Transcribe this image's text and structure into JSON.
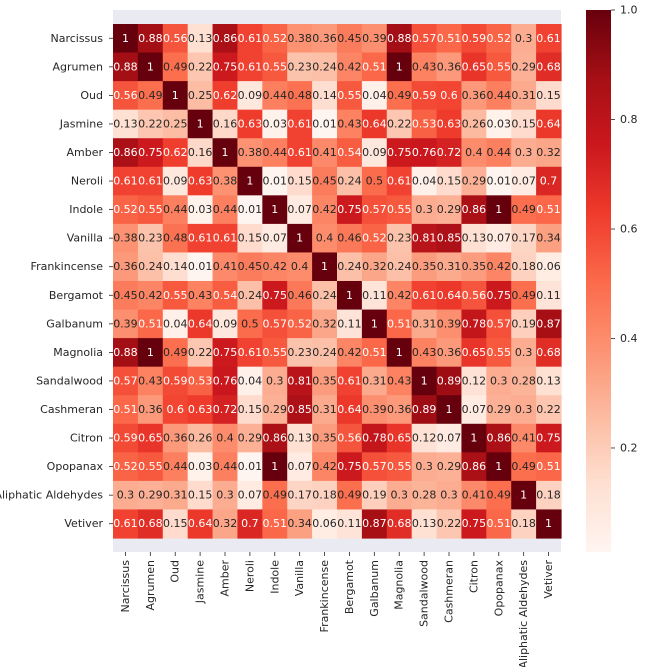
{
  "chart_data": {
    "type": "heatmap",
    "title": "",
    "xlabel": "",
    "ylabel": "",
    "labels": [
      "Narcissus",
      "Agrumen",
      "Oud",
      "Jasmine",
      "Amber",
      "Neroli",
      "Indole",
      "Vanilla",
      "Frankincense",
      "Bergamot",
      "Galbanum",
      "Magnolia",
      "Sandalwood",
      "Cashmeran",
      "Citron",
      "Opopanax",
      "Aliphatic Aldehydes",
      "Vetiver"
    ],
    "matrix": [
      [
        1,
        0.88,
        0.56,
        0.13,
        0.86,
        0.61,
        0.52,
        0.38,
        0.36,
        0.45,
        0.39,
        0.88,
        0.57,
        0.51,
        0.59,
        0.52,
        0.3,
        0.61
      ],
      [
        0.88,
        1,
        0.49,
        0.22,
        0.75,
        0.61,
        0.55,
        0.23,
        0.24,
        0.42,
        0.51,
        1,
        0.43,
        0.36,
        0.65,
        0.55,
        0.29,
        0.68
      ],
      [
        0.56,
        0.49,
        1,
        0.25,
        0.62,
        0.09,
        0.44,
        0.48,
        0.14,
        0.55,
        0.04,
        0.49,
        0.59,
        0.6,
        0.36,
        0.44,
        0.31,
        0.15
      ],
      [
        0.13,
        0.22,
        0.25,
        1,
        0.16,
        0.63,
        0.03,
        0.61,
        0.01,
        0.43,
        0.64,
        0.22,
        0.53,
        0.63,
        0.26,
        0.03,
        0.15,
        0.64
      ],
      [
        0.86,
        0.75,
        0.62,
        0.16,
        1,
        0.38,
        0.44,
        0.61,
        0.41,
        0.54,
        0.09,
        0.75,
        0.76,
        0.72,
        0.4,
        0.44,
        0.3,
        0.32
      ],
      [
        0.61,
        0.61,
        0.09,
        0.63,
        0.38,
        1,
        0.01,
        0.15,
        0.45,
        0.24,
        0.5,
        0.61,
        0.04,
        0.15,
        0.29,
        0.01,
        0.07,
        0.7
      ],
      [
        0.52,
        0.55,
        0.44,
        0.03,
        0.44,
        0.01,
        1,
        0.07,
        0.42,
        0.75,
        0.57,
        0.55,
        0.3,
        0.29,
        0.86,
        1,
        0.49,
        0.51
      ],
      [
        0.38,
        0.23,
        0.48,
        0.61,
        0.61,
        0.15,
        0.07,
        1,
        0.4,
        0.46,
        0.52,
        0.23,
        0.81,
        0.85,
        0.13,
        0.07,
        0.17,
        0.34
      ],
      [
        0.36,
        0.24,
        0.14,
        0.01,
        0.41,
        0.45,
        0.42,
        0.4,
        1,
        0.24,
        0.32,
        0.24,
        0.35,
        0.31,
        0.35,
        0.42,
        0.18,
        0.06
      ],
      [
        0.45,
        0.42,
        0.55,
        0.43,
        0.54,
        0.24,
        0.75,
        0.46,
        0.24,
        1,
        0.11,
        0.42,
        0.61,
        0.64,
        0.56,
        0.75,
        0.49,
        0.11
      ],
      [
        0.39,
        0.51,
        0.04,
        0.64,
        0.09,
        0.5,
        0.57,
        0.52,
        0.32,
        0.11,
        1,
        0.51,
        0.31,
        0.39,
        0.78,
        0.57,
        0.19,
        0.87
      ],
      [
        0.88,
        1,
        0.49,
        0.22,
        0.75,
        0.61,
        0.55,
        0.23,
        0.24,
        0.42,
        0.51,
        1,
        0.43,
        0.36,
        0.65,
        0.55,
        0.3,
        0.68
      ],
      [
        0.57,
        0.43,
        0.59,
        0.53,
        0.76,
        0.04,
        0.3,
        0.81,
        0.35,
        0.61,
        0.31,
        0.43,
        1,
        0.89,
        0.12,
        0.3,
        0.28,
        0.13
      ],
      [
        0.51,
        0.36,
        0.6,
        0.63,
        0.72,
        0.15,
        0.29,
        0.85,
        0.31,
        0.64,
        0.39,
        0.36,
        0.89,
        1,
        0.07,
        0.29,
        0.3,
        0.22
      ],
      [
        0.59,
        0.65,
        0.36,
        0.26,
        0.4,
        0.29,
        0.86,
        0.13,
        0.35,
        0.56,
        0.78,
        0.65,
        0.12,
        0.07,
        1,
        0.86,
        0.41,
        0.75
      ],
      [
        0.52,
        0.55,
        0.44,
        0.03,
        0.44,
        0.01,
        1,
        0.07,
        0.42,
        0.75,
        0.57,
        0.55,
        0.3,
        0.29,
        0.86,
        1,
        0.49,
        0.51
      ],
      [
        0.3,
        0.29,
        0.31,
        0.15,
        0.3,
        0.07,
        0.49,
        0.17,
        0.18,
        0.49,
        0.19,
        0.3,
        0.28,
        0.3,
        0.41,
        0.49,
        1,
        0.18
      ],
      [
        0.61,
        0.68,
        0.15,
        0.64,
        0.32,
        0.7,
        0.51,
        0.34,
        0.06,
        0.11,
        0.87,
        0.68,
        0.13,
        0.22,
        0.75,
        0.51,
        0.18,
        1
      ]
    ],
    "colorbar": {
      "cmap": "Reds",
      "vmin": 0.01,
      "vmax": 1,
      "ticks": [
        0.2,
        0.4,
        0.6,
        0.8,
        1.0
      ],
      "tick_labels": [
        "0.2",
        "0.4",
        "0.6",
        "0.8",
        "1.0"
      ]
    },
    "colors": {
      "axes_background": "#eaeaf2",
      "text_dark": "#262626"
    }
  }
}
